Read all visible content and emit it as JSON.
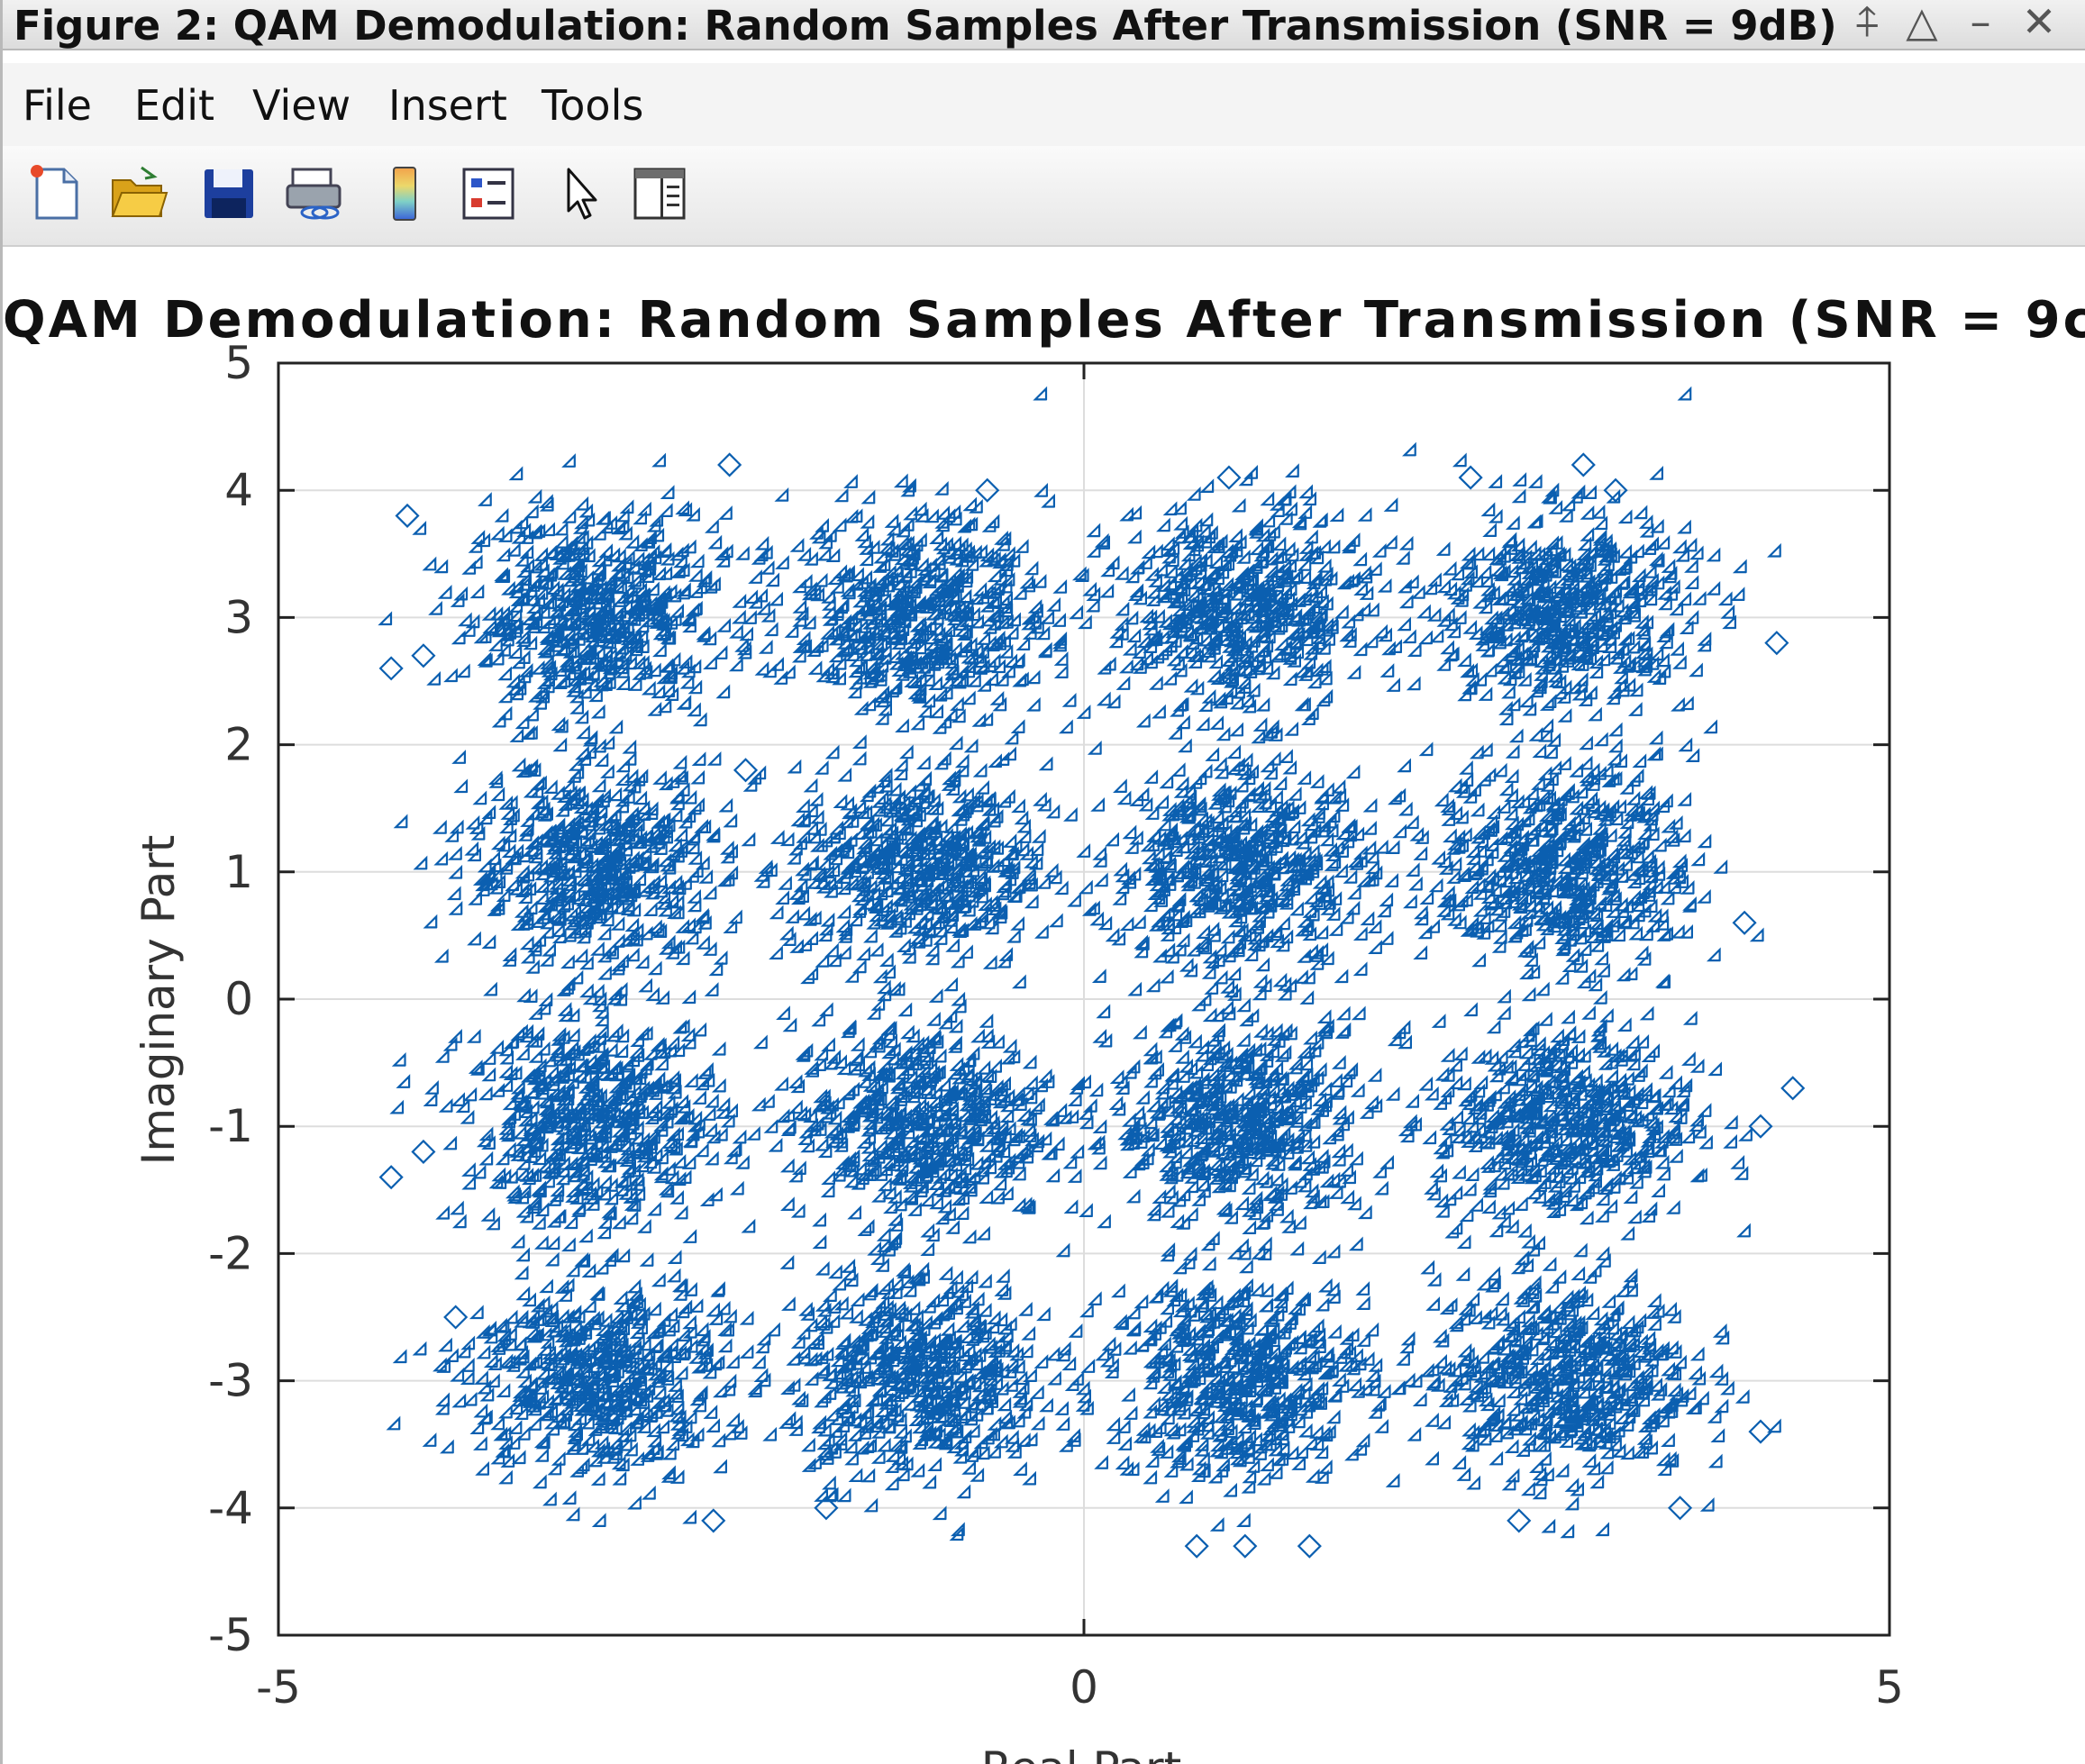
{
  "window": {
    "title": "Figure 2: QAM Demodulation: Random Samples After Transmission (SNR = 9dB)",
    "controls": {
      "pin": "⍏",
      "maximize": "△",
      "minimize": "–",
      "close": "✕"
    }
  },
  "menu": {
    "items": [
      "File",
      "Edit",
      "View",
      "Insert",
      "Tools"
    ]
  },
  "toolbar": {
    "buttons": [
      "new-figure-icon",
      "open-folder-icon",
      "save-icon",
      "link-figure-icon",
      "colorbar-icon",
      "legend-icon",
      "pointer-icon",
      "property-editor-icon"
    ]
  },
  "colors": {
    "marker": "#0b5fb0",
    "axis": "#222222",
    "grid": "#dddddd"
  },
  "chart_data": {
    "type": "scatter",
    "title": "QAM Demodulation: Random Samples After Transmission (SNR = 9c",
    "xlabel": "Real Part",
    "ylabel": "Imaginary Part",
    "xlim": [
      -5,
      5
    ],
    "ylim": [
      -5,
      5
    ],
    "xticks": [
      "-5",
      "0",
      "5"
    ],
    "yticks": [
      "5",
      "4",
      "3",
      "2",
      "1",
      "0",
      "-1",
      "-2",
      "-3",
      "-4",
      "-5"
    ],
    "grid": true,
    "marker": "open diamond",
    "constellation": "16-QAM",
    "cluster_centers": {
      "real": [
        -3,
        -1,
        1,
        3
      ],
      "imag": [
        3,
        1,
        -1,
        -3
      ]
    },
    "noise_std": 0.4,
    "points_per_cluster": 600,
    "outliers": [
      [
        -4.2,
        3.8
      ],
      [
        -2.2,
        4.2
      ],
      [
        -4.1,
        2.7
      ],
      [
        -4.3,
        2.6
      ],
      [
        -4.3,
        -1.4
      ],
      [
        -4.1,
        -1.2
      ],
      [
        -3.9,
        -2.5
      ],
      [
        -0.6,
        4.0
      ],
      [
        0.9,
        4.1
      ],
      [
        2.4,
        4.1
      ],
      [
        3.1,
        4.2
      ],
      [
        3.3,
        4.0
      ],
      [
        4.3,
        2.8
      ],
      [
        4.1,
        0.6
      ],
      [
        4.2,
        -1.0
      ],
      [
        4.4,
        -0.7
      ],
      [
        4.2,
        -3.4
      ],
      [
        0.7,
        -4.3
      ],
      [
        1.0,
        -4.3
      ],
      [
        1.4,
        -4.3
      ],
      [
        -1.6,
        -4.0
      ],
      [
        -2.3,
        -4.1
      ],
      [
        2.7,
        -4.1
      ],
      [
        3.7,
        -4.0
      ],
      [
        -2.1,
        1.8
      ]
    ]
  }
}
